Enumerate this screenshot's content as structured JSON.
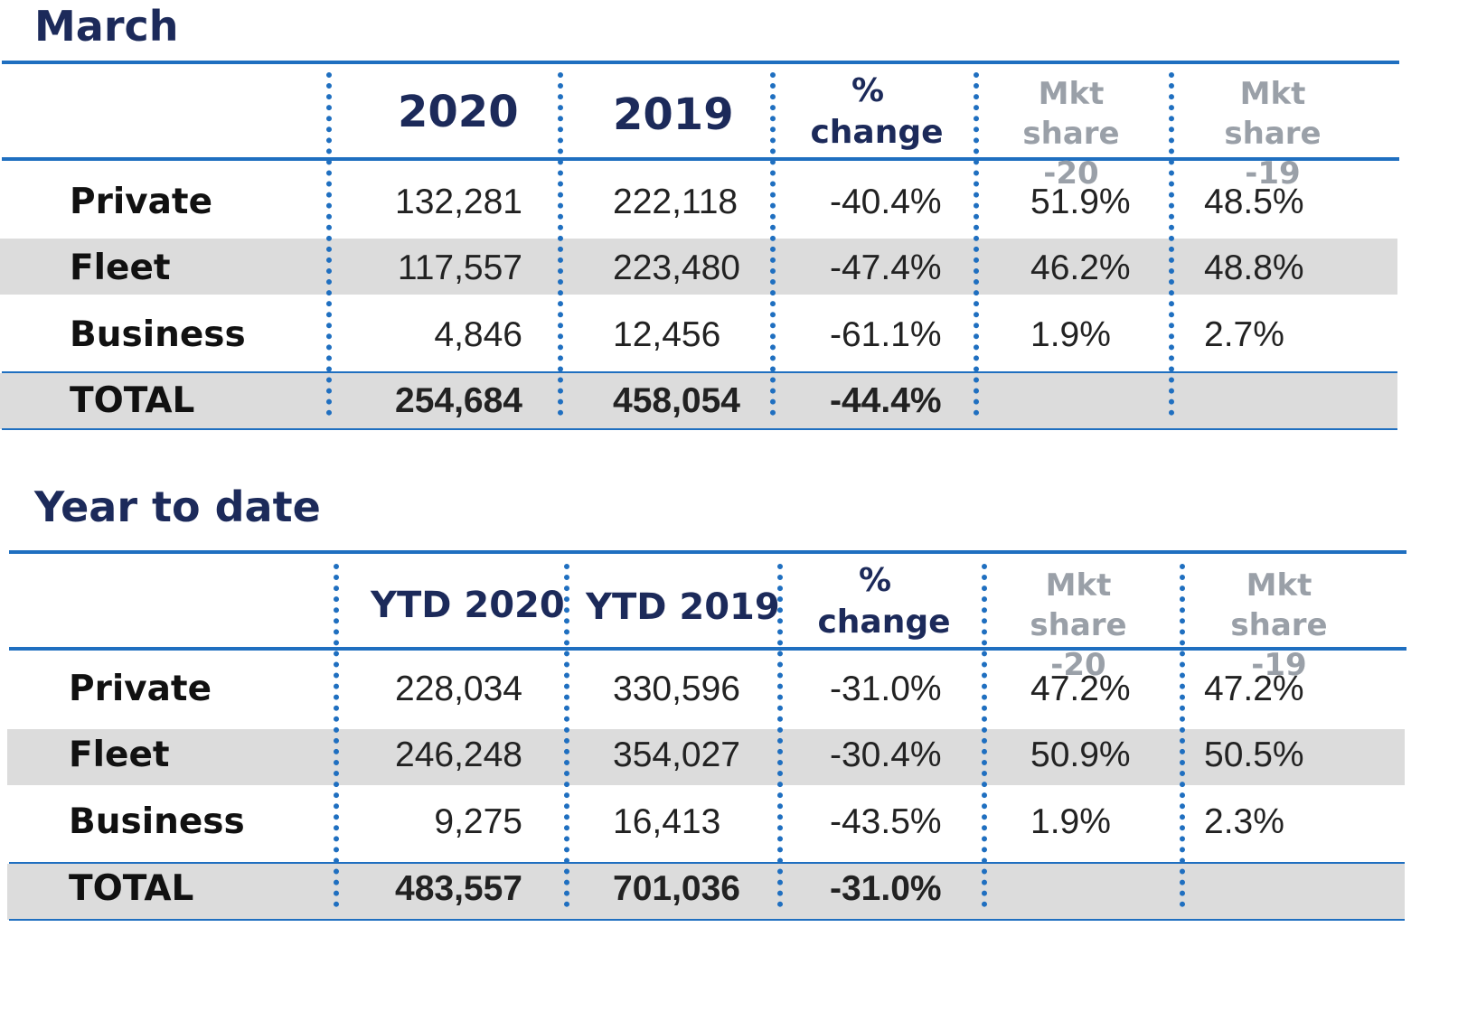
{
  "tables": [
    {
      "title": "March",
      "headers": {
        "year_a": "2020",
        "year_b": "2019",
        "pct_line1": "%",
        "pct_line2": "change",
        "mkt20_line1": "Mkt",
        "mkt20_line2": "share -20",
        "mkt19_line1": "Mkt",
        "mkt19_line2": "share -19"
      },
      "rows": [
        {
          "label": "Private",
          "a": "132,281",
          "b": "222,118",
          "pct": "-40.4%",
          "m20": "51.9%",
          "m19": "48.5%"
        },
        {
          "label": "Fleet",
          "a": "117,557",
          "b": "223,480",
          "pct": "-47.4%",
          "m20": "46.2%",
          "m19": "48.8%"
        },
        {
          "label": "Business",
          "a": "4,846",
          "b": "12,456",
          "pct": "-61.1%",
          "m20": "1.9%",
          "m19": "2.7%"
        }
      ],
      "total": {
        "label": "TOTAL",
        "a": "254,684",
        "b": "458,054",
        "pct": "-44.4%"
      }
    },
    {
      "title": "Year to date",
      "headers": {
        "year_a": "YTD 2020",
        "year_b": "YTD 2019",
        "pct_line1": "%",
        "pct_line2": "change",
        "mkt20_line1": "Mkt",
        "mkt20_line2": "share -20",
        "mkt19_line1": "Mkt",
        "mkt19_line2": "share -19"
      },
      "rows": [
        {
          "label": "Private",
          "a": "228,034",
          "b": "330,596",
          "pct": "-31.0%",
          "m20": "47.2%",
          "m19": "47.2%"
        },
        {
          "label": "Fleet",
          "a": "246,248",
          "b": "354,027",
          "pct": "-30.4%",
          "m20": "50.9%",
          "m19": "50.5%"
        },
        {
          "label": "Business",
          "a": "9,275",
          "b": "16,413",
          "pct": "-43.5%",
          "m20": "1.9%",
          "m19": "2.3%"
        }
      ],
      "total": {
        "label": "TOTAL",
        "a": "483,557",
        "b": "701,036",
        "pct": "-31.0%"
      }
    }
  ],
  "colors": {
    "accent": "#1f6fc0",
    "title": "#1c2a5a",
    "shade": "#dcdcdc",
    "muted": "#9aa0a8"
  }
}
